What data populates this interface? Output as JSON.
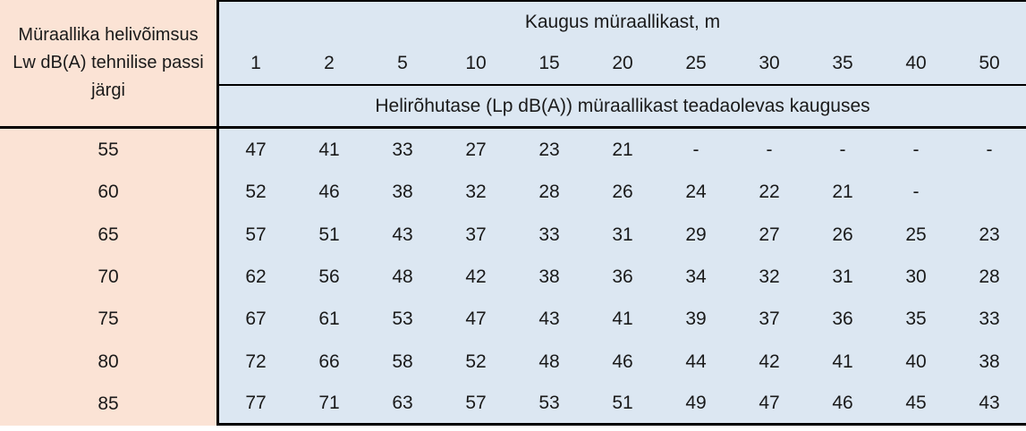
{
  "table": {
    "row_header_title": "Müraallika helivõimsus Lw dB(A) tehnilise passi järgi",
    "col_group_title": "Kaugus müraallikast, m",
    "subheader": "Helirõhutase (Lp dB(A)) müraallikast teadaolevas kauguses",
    "distances": [
      "1",
      "2",
      "5",
      "10",
      "15",
      "20",
      "25",
      "30",
      "35",
      "40",
      "50"
    ],
    "rows": [
      {
        "lw": "55",
        "values": [
          "47",
          "41",
          "33",
          "27",
          "23",
          "21",
          "-",
          "-",
          "-",
          "-",
          "-"
        ]
      },
      {
        "lw": "60",
        "values": [
          "52",
          "46",
          "38",
          "32",
          "28",
          "26",
          "24",
          "22",
          "21",
          "-",
          ""
        ]
      },
      {
        "lw": "65",
        "values": [
          "57",
          "51",
          "43",
          "37",
          "33",
          "31",
          "29",
          "27",
          "26",
          "25",
          "23"
        ]
      },
      {
        "lw": "70",
        "values": [
          "62",
          "56",
          "48",
          "42",
          "38",
          "36",
          "34",
          "32",
          "31",
          "30",
          "28"
        ]
      },
      {
        "lw": "75",
        "values": [
          "67",
          "61",
          "53",
          "47",
          "43",
          "41",
          "39",
          "37",
          "36",
          "35",
          "33"
        ]
      },
      {
        "lw": "80",
        "values": [
          "72",
          "66",
          "58",
          "52",
          "48",
          "46",
          "44",
          "42",
          "41",
          "40",
          "38"
        ]
      },
      {
        "lw": "85",
        "values": [
          "77",
          "71",
          "63",
          "57",
          "53",
          "51",
          "49",
          "47",
          "46",
          "45",
          "43"
        ]
      }
    ],
    "colors": {
      "row_header_bg": "#fbe3d5",
      "data_bg": "#dce7f2",
      "border": "#000000"
    }
  }
}
